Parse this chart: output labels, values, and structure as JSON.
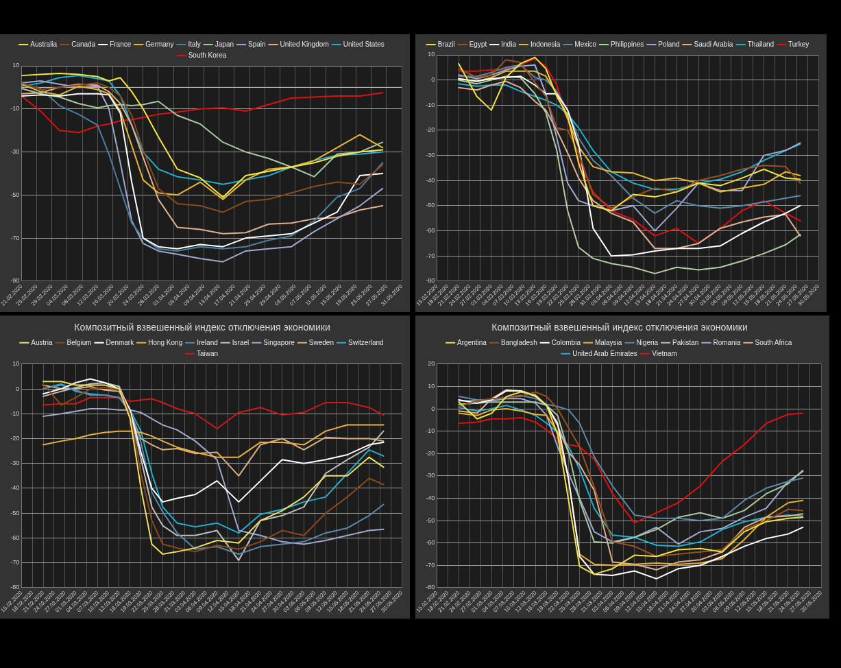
{
  "chart_data": [
    {
      "type": "line",
      "legend": "top",
      "grid": true,
      "marker": "none",
      "line_style": "solid",
      "x": [
        "2020-02-21",
        "2020-02-26",
        "2020-03-02",
        "2020-03-07",
        "2020-03-12",
        "2020-03-15",
        "2020-03-18",
        "2020-03-21",
        "2020-03-24",
        "2020-03-28",
        "2020-04-02",
        "2020-04-08",
        "2020-04-14",
        "2020-04-20",
        "2020-04-26",
        "2020-05-02",
        "2020-05-08",
        "2020-05-14",
        "2020-05-20",
        "2020-05-26"
      ],
      "xlim": [
        "2020-02-21",
        "2020-05-31"
      ],
      "xticks": [
        {
          "value": "2020-02-21",
          "label": "21.02.2020"
        },
        {
          "value": "2020-02-25",
          "label": "25.02.2020"
        },
        {
          "value": "2020-02-29",
          "label": "29.02.2020"
        },
        {
          "value": "2020-03-04",
          "label": "04.03.2020"
        },
        {
          "value": "2020-03-08",
          "label": "08.03.2020"
        },
        {
          "value": "2020-03-12",
          "label": "12.03.2020"
        },
        {
          "value": "2020-03-16",
          "label": "16.03.2020"
        },
        {
          "value": "2020-03-20",
          "label": "20.03.2020"
        },
        {
          "value": "2020-03-24",
          "label": "24.03.2020"
        },
        {
          "value": "2020-03-28",
          "label": "28.03.2020"
        },
        {
          "value": "2020-04-01",
          "label": "01.04.2020"
        },
        {
          "value": "2020-04-05",
          "label": "05.04.2020"
        },
        {
          "value": "2020-04-09",
          "label": "09.04.2020"
        },
        {
          "value": "2020-04-13",
          "label": "13.04.2020"
        },
        {
          "value": "2020-04-17",
          "label": "17.04.2020"
        },
        {
          "value": "2020-04-21",
          "label": "21.04.2020"
        },
        {
          "value": "2020-04-25",
          "label": "25.04.2020"
        },
        {
          "value": "2020-04-29",
          "label": "29.04.2020"
        },
        {
          "value": "2020-05-03",
          "label": "03.05.2020"
        },
        {
          "value": "2020-05-07",
          "label": "07.05.2020"
        },
        {
          "value": "2020-05-11",
          "label": "11.05.2020"
        },
        {
          "value": "2020-05-15",
          "label": "15.05.2020"
        },
        {
          "value": "2020-05-19",
          "label": "19.05.2020"
        },
        {
          "value": "2020-05-23",
          "label": "23.05.2020"
        },
        {
          "value": "2020-05-27",
          "label": "27.05.2020"
        },
        {
          "value": "2020-05-31",
          "label": "31.05.2020"
        }
      ],
      "ylim": [
        -90,
        10
      ],
      "yticks": [
        -90,
        -70,
        -50,
        -30,
        -10,
        10
      ],
      "ref_lines": [
        {
          "axis": "y",
          "value": 0,
          "color": "#d0d0d0"
        }
      ],
      "series": [
        {
          "name": "Australia",
          "color": "#f5e642",
          "values": [
            5.5,
            6,
            6.5,
            6,
            5,
            3,
            4.5,
            -2,
            -10,
            -23,
            -38,
            -42,
            -51,
            -41,
            -39,
            -37,
            -35,
            -32,
            -30,
            -29
          ]
        },
        {
          "name": "Canada",
          "color": "#8b4a1c",
          "values": [
            2,
            -1,
            0,
            1,
            2,
            0,
            -4,
            -13,
            -29,
            -47,
            -54,
            -55,
            -58,
            -53,
            -52,
            -49,
            -46,
            -44,
            -45,
            -36
          ]
        },
        {
          "name": "France",
          "color": "#ffffff",
          "values": [
            -4,
            -3.5,
            -4,
            -3,
            -3,
            -3.5,
            -12,
            -44,
            -70,
            -74,
            -75,
            -73,
            -74,
            -70,
            -69,
            -68,
            -63,
            -58,
            -41,
            -40
          ]
        },
        {
          "name": "Germany",
          "color": "#e8b830",
          "values": [
            1.5,
            -2,
            -3.5,
            0.5,
            -1,
            -3,
            -11,
            -27,
            -43,
            -49,
            -50,
            -44,
            -52,
            -43,
            -38,
            -37,
            -34,
            -28,
            -22,
            -28
          ]
        },
        {
          "name": "Italy",
          "color": "#4a7fa0",
          "values": [
            1.5,
            -0.5,
            -8.5,
            -12.5,
            -17.5,
            -31,
            -47,
            -63,
            -70,
            -75,
            -76,
            -74,
            -75,
            -74,
            -71,
            -69,
            -62,
            -51,
            -47,
            -35
          ]
        },
        {
          "name": "Japan",
          "color": "#a8c8a0",
          "values": [
            -0.5,
            -3,
            -4.5,
            -7.5,
            -9.5,
            -8.5,
            -8,
            -8.5,
            -8,
            -6.5,
            -13,
            -17,
            -25.5,
            -30,
            -33,
            -37,
            -41.5,
            -31,
            -30,
            -25.5
          ]
        },
        {
          "name": "Spain",
          "color": "#a0a8d0",
          "values": [
            2,
            3,
            1.5,
            0,
            0.5,
            -10,
            -35,
            -62,
            -72.5,
            -76,
            -77.5,
            -79.5,
            -81,
            -76,
            -75,
            -74,
            -67,
            -61,
            -55,
            -47
          ]
        },
        {
          "name": "United Kingdom",
          "color": "#e0b090",
          "values": [
            -3,
            -2.5,
            0,
            1.5,
            1,
            -2,
            -7.5,
            -17.5,
            -32.5,
            -52,
            -65,
            -66,
            -68,
            -67.5,
            -63.5,
            -63,
            -61,
            -60.5,
            -57,
            -55
          ]
        },
        {
          "name": "United States",
          "color": "#20b0d0",
          "values": [
            0.5,
            2,
            4.5,
            5.5,
            4,
            3,
            -4,
            -17.5,
            -30,
            -38,
            -41.5,
            -43,
            -45,
            -43,
            -41,
            -37,
            -34,
            -31.5,
            -31,
            -30
          ]
        },
        {
          "name": "South Korea",
          "color": "#e01010",
          "values": [
            -4,
            -11,
            -20,
            -21,
            -18,
            -17,
            -15.5,
            -15,
            -14,
            -12.5,
            -11.5,
            -10,
            -9.5,
            -11,
            -8,
            -5,
            -4.5,
            -4,
            -4,
            -2.5
          ]
        }
      ]
    },
    {
      "type": "line",
      "legend": "top",
      "grid": true,
      "marker": "none",
      "line_style": "solid",
      "x": [
        "2020-02-21",
        "2020-02-26",
        "2020-03-01",
        "2020-03-05",
        "2020-03-09",
        "2020-03-13",
        "2020-03-16",
        "2020-03-19",
        "2020-03-22",
        "2020-03-25",
        "2020-03-29",
        "2020-04-03",
        "2020-04-09",
        "2020-04-15",
        "2020-04-21",
        "2020-04-27",
        "2020-05-03",
        "2020-05-09",
        "2020-05-15",
        "2020-05-21",
        "2020-05-25"
      ],
      "xlim": [
        "2020-02-15",
        "2020-05-30"
      ],
      "xticks": [
        {
          "value": "2020-02-15",
          "label": "15.02.2020"
        },
        {
          "value": "2020-02-18",
          "label": "18.02.2020"
        },
        {
          "value": "2020-02-21",
          "label": "21.02.2020"
        },
        {
          "value": "2020-02-24",
          "label": "24.02.2020"
        },
        {
          "value": "2020-02-27",
          "label": "27.02.2020"
        },
        {
          "value": "2020-03-01",
          "label": "01.03.2020"
        },
        {
          "value": "2020-03-04",
          "label": "04.03.2020"
        },
        {
          "value": "2020-03-07",
          "label": "07.03.2020"
        },
        {
          "value": "2020-03-10",
          "label": "10.03.2020"
        },
        {
          "value": "2020-03-13",
          "label": "13.03.2020"
        },
        {
          "value": "2020-03-16",
          "label": "16.03.2020"
        },
        {
          "value": "2020-03-19",
          "label": "19.03.2020"
        },
        {
          "value": "2020-03-22",
          "label": "22.03.2020"
        },
        {
          "value": "2020-03-25",
          "label": "25.03.2020"
        },
        {
          "value": "2020-03-28",
          "label": "28.03.2020"
        },
        {
          "value": "2020-03-31",
          "label": "31.03.2020"
        },
        {
          "value": "2020-04-03",
          "label": "03.04.2020"
        },
        {
          "value": "2020-04-06",
          "label": "06.04.2020"
        },
        {
          "value": "2020-04-09",
          "label": "09.04.2020"
        },
        {
          "value": "2020-04-12",
          "label": "12.04.2020"
        },
        {
          "value": "2020-04-15",
          "label": "15.04.2020"
        },
        {
          "value": "2020-04-18",
          "label": "18.04.2020"
        },
        {
          "value": "2020-04-21",
          "label": "21.04.2020"
        },
        {
          "value": "2020-04-24",
          "label": "24.04.2020"
        },
        {
          "value": "2020-04-27",
          "label": "27.04.2020"
        },
        {
          "value": "2020-04-30",
          "label": "30.04.2020"
        },
        {
          "value": "2020-05-03",
          "label": "03.05.2020"
        },
        {
          "value": "2020-05-06",
          "label": "06.05.2020"
        },
        {
          "value": "2020-05-09",
          "label": "09.05.2020"
        },
        {
          "value": "2020-05-12",
          "label": "12.05.2020"
        },
        {
          "value": "2020-05-15",
          "label": "15.05.2020"
        },
        {
          "value": "2020-05-18",
          "label": "18.05.2020"
        },
        {
          "value": "2020-05-21",
          "label": "21.05.2020"
        },
        {
          "value": "2020-05-24",
          "label": "24.05.2020"
        },
        {
          "value": "2020-05-27",
          "label": "27.05.2020"
        },
        {
          "value": "2020-05-30",
          "label": "30.05.2020"
        }
      ],
      "ylim": [
        -80,
        10
      ],
      "yticks": [
        -80,
        -70,
        -60,
        -50,
        -40,
        -30,
        -20,
        -10,
        0,
        10
      ],
      "series": [
        {
          "name": "Brazil",
          "color": "#f0e040",
          "values": [
            6.5,
            -6.5,
            -12,
            1,
            6.5,
            9,
            4.5,
            -6.5,
            -14,
            -33,
            -50,
            -52,
            -45.5,
            -46.5,
            -44.5,
            -41,
            -42,
            -39,
            -35.5,
            -39,
            -39.5
          ]
        },
        {
          "name": "Egypt",
          "color": "#9a5020",
          "values": [
            4.5,
            1,
            2,
            8,
            7,
            -1,
            -6.5,
            -19,
            -20,
            -29,
            -45.5,
            -51,
            -46.5,
            -43,
            -44.5,
            -40,
            -38,
            -35.5,
            -34,
            -34.5,
            -41
          ]
        },
        {
          "name": "India",
          "color": "#ffffff",
          "values": [
            0.5,
            -0.5,
            0.5,
            1,
            1.5,
            -2,
            -5.5,
            -5.5,
            -12,
            -25.5,
            -59,
            -70,
            -69.5,
            -68,
            -67,
            -67,
            -66,
            -61,
            -56.5,
            -53,
            -50
          ]
        },
        {
          "name": "Indonesia",
          "color": "#e8b830",
          "values": [
            0.5,
            -0.5,
            1,
            3.5,
            3.5,
            3.5,
            1.5,
            -5.5,
            -15.5,
            -26.5,
            -34.5,
            -36.5,
            -37,
            -40,
            -39,
            -41,
            -44.5,
            -43,
            -41.5,
            -36.5,
            -38
          ]
        },
        {
          "name": "Mexico",
          "color": "#5a8aa8",
          "values": [
            1.5,
            1.5,
            3,
            5,
            6,
            1,
            0,
            -4.5,
            -12,
            -23,
            -32,
            -38,
            -47,
            -53,
            -48,
            -50,
            -51,
            -50,
            -48.5,
            -47,
            -46
          ]
        },
        {
          "name": "Philippines",
          "color": "#b0d0a0",
          "values": [
            0,
            -1.5,
            0,
            1.5,
            1,
            -5.5,
            -13,
            -28,
            -52,
            -66.5,
            -71,
            -73,
            -74.5,
            -77,
            -74.5,
            -75.5,
            -74.5,
            -72,
            -69,
            -65.5,
            -61.5
          ]
        },
        {
          "name": "Poland",
          "color": "#a0a8d8",
          "values": [
            2,
            0.5,
            2,
            4,
            5.5,
            6,
            -5.5,
            -23,
            -41,
            -48,
            -50,
            -52,
            -50,
            -60,
            -51,
            -41,
            -44,
            -44,
            -30,
            -28,
            -25
          ]
        },
        {
          "name": "Saudi Arabia",
          "color": "#e0b090",
          "values": [
            -3,
            -4,
            -2,
            -0.5,
            -3,
            -8.5,
            -12,
            -20,
            -29,
            -39,
            -48,
            -53,
            -56.5,
            -67,
            -67,
            -65,
            -59,
            -56.5,
            -54.5,
            -53.5,
            -62
          ]
        },
        {
          "name": "Thailand",
          "color": "#20b0d0",
          "values": [
            -1.5,
            -2.5,
            -2,
            -2,
            -4.5,
            -6.5,
            -8,
            -10,
            -13.5,
            -19,
            -28,
            -36.5,
            -41,
            -43.5,
            -43.5,
            -41,
            -39.5,
            -36.5,
            -32,
            -28,
            -25.5
          ]
        },
        {
          "name": "Turkey",
          "color": "#e01010",
          "values": [
            3.5,
            3.5,
            4,
            4.5,
            6,
            8.5,
            5.5,
            -2,
            -15.5,
            -32,
            -44.5,
            -52,
            -55.5,
            -62,
            -59,
            -65,
            -59,
            -52,
            -48,
            -53,
            -56
          ]
        }
      ]
    },
    {
      "type": "line",
      "title": "Композитный взвешенный индекс отключения экономики",
      "legend": "top",
      "grid": true,
      "marker": "none",
      "line_style": "solid",
      "x": [
        "2020-02-21",
        "2020-02-26",
        "2020-03-01",
        "2020-03-05",
        "2020-03-09",
        "2020-03-13",
        "2020-03-16",
        "2020-03-19",
        "2020-03-22",
        "2020-03-25",
        "2020-03-29",
        "2020-04-03",
        "2020-04-09",
        "2020-04-15",
        "2020-04-21",
        "2020-04-27",
        "2020-05-03",
        "2020-05-09",
        "2020-05-15",
        "2020-05-21",
        "2020-05-25"
      ],
      "xlim": [
        "2020-02-15",
        "2020-05-30"
      ],
      "xticks": [
        {
          "value": "2020-02-15",
          "label": "15.02.2020"
        },
        {
          "value": "2020-02-18",
          "label": "18.02.2020"
        },
        {
          "value": "2020-02-21",
          "label": "21.02.2020"
        },
        {
          "value": "2020-02-24",
          "label": "24.02.2020"
        },
        {
          "value": "2020-02-27",
          "label": "27.02.2020"
        },
        {
          "value": "2020-03-01",
          "label": "01.03.2020"
        },
        {
          "value": "2020-03-04",
          "label": "04.03.2020"
        },
        {
          "value": "2020-03-07",
          "label": "07.03.2020"
        },
        {
          "value": "2020-03-10",
          "label": "10.03.2020"
        },
        {
          "value": "2020-03-13",
          "label": "13.03.2020"
        },
        {
          "value": "2020-03-16",
          "label": "16.03.2020"
        },
        {
          "value": "2020-03-19",
          "label": "19.03.2020"
        },
        {
          "value": "2020-03-22",
          "label": "22.03.2020"
        },
        {
          "value": "2020-03-25",
          "label": "25.03.2020"
        },
        {
          "value": "2020-03-28",
          "label": "28.03.2020"
        },
        {
          "value": "2020-03-31",
          "label": "31.03.2020"
        },
        {
          "value": "2020-04-03",
          "label": "03.04.2020"
        },
        {
          "value": "2020-04-06",
          "label": "06.04.2020"
        },
        {
          "value": "2020-04-09",
          "label": "09.04.2020"
        },
        {
          "value": "2020-04-12",
          "label": "12.04.2020"
        },
        {
          "value": "2020-04-15",
          "label": "15.04.2020"
        },
        {
          "value": "2020-04-18",
          "label": "18.04.2020"
        },
        {
          "value": "2020-04-21",
          "label": "21.04.2020"
        },
        {
          "value": "2020-04-24",
          "label": "24.04.2020"
        },
        {
          "value": "2020-04-27",
          "label": "27.04.2020"
        },
        {
          "value": "2020-04-30",
          "label": "30.04.2020"
        },
        {
          "value": "2020-05-03",
          "label": "03.05.2020"
        },
        {
          "value": "2020-05-06",
          "label": "06.05.2020"
        },
        {
          "value": "2020-05-09",
          "label": "09.05.2020"
        },
        {
          "value": "2020-05-12",
          "label": "12.05.2020"
        },
        {
          "value": "2020-05-15",
          "label": "15.05.2020"
        },
        {
          "value": "2020-05-18",
          "label": "18.05.2020"
        },
        {
          "value": "2020-05-21",
          "label": "21.05.2020"
        },
        {
          "value": "2020-05-24",
          "label": "24.05.2020"
        },
        {
          "value": "2020-05-27",
          "label": "27.05.2020"
        },
        {
          "value": "2020-05-30",
          "label": "30.05.2020"
        }
      ],
      "ylim": [
        -80,
        10
      ],
      "yticks": [
        -80,
        -70,
        -60,
        -50,
        -40,
        -30,
        -20,
        -10,
        0,
        10
      ],
      "series": [
        {
          "name": "Austria",
          "color": "#f0e060",
          "values": [
            3,
            3,
            1.5,
            1.5,
            1.5,
            0,
            -12,
            -40,
            -62.5,
            -66.5,
            -65.5,
            -64,
            -61,
            -62,
            -53,
            -49,
            -43.5,
            -35,
            -35,
            -27.5,
            -31.5
          ]
        },
        {
          "name": "Belgium",
          "color": "#8b4a1c",
          "values": [
            2,
            -6.5,
            -3.5,
            0,
            0.5,
            0,
            -10,
            -34,
            -53,
            -62.5,
            -64,
            -65.5,
            -63,
            -64.5,
            -61.5,
            -57,
            -59,
            -50,
            -43.5,
            -36,
            -38.5
          ]
        },
        {
          "name": "Denmark",
          "color": "#ffffff",
          "values": [
            -2,
            0,
            2.5,
            4,
            2.5,
            0,
            -8.5,
            -25.5,
            -40,
            -45.5,
            -44,
            -42.5,
            -37,
            -45.5,
            -37,
            -28.5,
            -30,
            -28.5,
            -26.5,
            -22.5,
            -21.5
          ]
        },
        {
          "name": "Hong Kong",
          "color": "#e8b040",
          "values": [
            -22.5,
            -21,
            -20,
            -18.5,
            -17.5,
            -17,
            -17,
            -17.5,
            -19,
            -21,
            -23.5,
            -25.5,
            -27.5,
            -27.5,
            -21.5,
            -21.5,
            -22.5,
            -17,
            -14.5,
            -14.5,
            -14.5
          ]
        },
        {
          "name": "Ireland",
          "color": "#5a8aa8",
          "values": [
            0,
            1.5,
            -0.5,
            -2.5,
            -2.5,
            -3.5,
            -9.5,
            -21.5,
            -41.5,
            -49.5,
            -58,
            -64.5,
            -63.5,
            -66.5,
            -63.5,
            -62.5,
            -61.5,
            -58,
            -56,
            -51,
            -46.5
          ]
        },
        {
          "name": "Israel",
          "color": "#c0c0c0",
          "values": [
            -3,
            -1,
            0.5,
            2,
            2.5,
            1,
            -9.5,
            -28,
            -47.5,
            -55,
            -59,
            -59,
            -57,
            -69,
            -53,
            -51,
            -47.5,
            -34,
            -28.5,
            -23.5,
            -17
          ]
        },
        {
          "name": "Singapore",
          "color": "#a0a8d0",
          "values": [
            -11,
            -10,
            -9,
            -8,
            -8,
            -8.5,
            -8.5,
            -9.5,
            -12,
            -14.5,
            -16.5,
            -21,
            -28.5,
            -57,
            -59,
            -61.5,
            -62.5,
            -61,
            -59,
            -57,
            -56.5
          ]
        },
        {
          "name": "Sweden",
          "color": "#d8b080",
          "values": [
            1.5,
            0,
            0,
            1,
            -0.5,
            -1,
            -9.5,
            -20,
            -22.5,
            -24.5,
            -24,
            -26,
            -25.5,
            -35,
            -22.5,
            -20,
            -24.5,
            -19.5,
            -20,
            -20,
            -21
          ]
        },
        {
          "name": "Switzerland",
          "color": "#20b0d0",
          "values": [
            0,
            2,
            -1,
            -2,
            -2.5,
            -3.5,
            -8.5,
            -17,
            -34,
            -47.5,
            -54,
            -55.5,
            -54,
            -58,
            -50.5,
            -48.5,
            -45.5,
            -43.5,
            -34,
            -24.5,
            -27
          ]
        },
        {
          "name": "Taiwan",
          "color": "#d01818",
          "values": [
            -6.5,
            -6,
            -6,
            -3.5,
            -3.5,
            -3.5,
            -5,
            -4.5,
            -4,
            -5.5,
            -8,
            -10,
            -16,
            -9.5,
            -7.5,
            -10.5,
            -9.5,
            -5.5,
            -5.5,
            -7.5,
            -10.5
          ]
        }
      ]
    },
    {
      "type": "line",
      "title": "Композитный взвешенный индекс отключения экономики",
      "legend": "top",
      "grid": true,
      "marker": "none",
      "line_style": "solid",
      "x": [
        "2020-02-21",
        "2020-02-26",
        "2020-03-01",
        "2020-03-05",
        "2020-03-09",
        "2020-03-13",
        "2020-03-16",
        "2020-03-19",
        "2020-03-22",
        "2020-03-25",
        "2020-03-29",
        "2020-04-03",
        "2020-04-09",
        "2020-04-15",
        "2020-04-21",
        "2020-04-27",
        "2020-05-03",
        "2020-05-09",
        "2020-05-15",
        "2020-05-21",
        "2020-05-25"
      ],
      "xlim": [
        "2020-02-15",
        "2020-05-30"
      ],
      "xticks": [
        {
          "value": "2020-02-15",
          "label": "15.02.2020"
        },
        {
          "value": "2020-02-18",
          "label": "18.02.2020"
        },
        {
          "value": "2020-02-21",
          "label": "21.02.2020"
        },
        {
          "value": "2020-02-24",
          "label": "24.02.2020"
        },
        {
          "value": "2020-02-27",
          "label": "27.02.2020"
        },
        {
          "value": "2020-03-01",
          "label": "01.03.2020"
        },
        {
          "value": "2020-03-04",
          "label": "04.03.2020"
        },
        {
          "value": "2020-03-07",
          "label": "07.03.2020"
        },
        {
          "value": "2020-03-10",
          "label": "10.03.2020"
        },
        {
          "value": "2020-03-13",
          "label": "13.03.2020"
        },
        {
          "value": "2020-03-16",
          "label": "16.03.2020"
        },
        {
          "value": "2020-03-19",
          "label": "19.03.2020"
        },
        {
          "value": "2020-03-22",
          "label": "22.03.2020"
        },
        {
          "value": "2020-03-25",
          "label": "25.03.2020"
        },
        {
          "value": "2020-03-28",
          "label": "28.03.2020"
        },
        {
          "value": "2020-03-31",
          "label": "31.03.2020"
        },
        {
          "value": "2020-04-03",
          "label": "03.04.2020"
        },
        {
          "value": "2020-04-06",
          "label": "06.04.2020"
        },
        {
          "value": "2020-04-09",
          "label": "09.04.2020"
        },
        {
          "value": "2020-04-12",
          "label": "12.04.2020"
        },
        {
          "value": "2020-04-15",
          "label": "15.04.2020"
        },
        {
          "value": "2020-04-18",
          "label": "18.04.2020"
        },
        {
          "value": "2020-04-21",
          "label": "21.04.2020"
        },
        {
          "value": "2020-04-24",
          "label": "24.04.2020"
        },
        {
          "value": "2020-04-27",
          "label": "27.04.2020"
        },
        {
          "value": "2020-04-30",
          "label": "30.04.2020"
        },
        {
          "value": "2020-05-03",
          "label": "03.05.2020"
        },
        {
          "value": "2020-05-06",
          "label": "06.05.2020"
        },
        {
          "value": "2020-05-09",
          "label": "09.05.2020"
        },
        {
          "value": "2020-05-12",
          "label": "12.05.2020"
        },
        {
          "value": "2020-05-15",
          "label": "15.05.2020"
        },
        {
          "value": "2020-05-18",
          "label": "18.05.2020"
        },
        {
          "value": "2020-05-21",
          "label": "21.05.2020"
        },
        {
          "value": "2020-05-24",
          "label": "24.05.2020"
        },
        {
          "value": "2020-05-27",
          "label": "27.05.2020"
        },
        {
          "value": "2020-05-30",
          "label": "30.05.2020"
        }
      ],
      "ylim": [
        -80,
        20
      ],
      "yticks": [
        -80,
        -70,
        -60,
        -50,
        -40,
        -30,
        -20,
        -10,
        0,
        10,
        20
      ],
      "series": [
        {
          "name": "Argentina",
          "color": "#f0e040",
          "values": [
            3,
            -4.5,
            -2,
            5.5,
            7.5,
            6,
            1.5,
            -11.5,
            -41,
            -70.5,
            -74,
            -71.5,
            -65.5,
            -66,
            -63,
            -62.5,
            -64,
            -55,
            -50.5,
            -49,
            -48.5
          ]
        },
        {
          "name": "Bangladesh",
          "color": "#9a5020",
          "values": [
            1,
            3.5,
            4.5,
            5,
            5.5,
            7.5,
            5.5,
            0,
            -8.5,
            -17,
            -35,
            -59.5,
            -61.5,
            -66,
            -65,
            -64,
            -63,
            -54,
            -50,
            -45,
            -45.5
          ]
        },
        {
          "name": "Colombia",
          "color": "#ffffff",
          "values": [
            4,
            2.5,
            4,
            8,
            8,
            5.5,
            1.5,
            -6.5,
            -31.5,
            -66,
            -74,
            -74.5,
            -72.5,
            -76,
            -71.5,
            -70,
            -66,
            -61.5,
            -58,
            -56,
            -53
          ]
        },
        {
          "name": "Malaysia",
          "color": "#e8b030",
          "values": [
            -2,
            -3,
            -0.5,
            0,
            -1,
            -2.5,
            -3,
            -10.5,
            -31.5,
            -65,
            -69.5,
            -70,
            -69.5,
            -69,
            -69.5,
            -69,
            -67,
            -58.5,
            -48.5,
            -42,
            -41
          ]
        },
        {
          "name": "Nigeria",
          "color": "#5a8aa8",
          "values": [
            5.5,
            4,
            4,
            5,
            6,
            4.5,
            2,
            1,
            -0.5,
            -6.5,
            -21.5,
            -34.5,
            -47.5,
            -49,
            -49,
            -50,
            -49,
            -41,
            -35.5,
            -32.5,
            -31
          ]
        },
        {
          "name": "Pakistan",
          "color": "#a8c8a0",
          "values": [
            2,
            2.5,
            3,
            3,
            3,
            3,
            1.5,
            -3,
            -19.5,
            -41,
            -59.5,
            -60,
            -57.5,
            -54,
            -48.5,
            -46.5,
            -49,
            -45.5,
            -38,
            -33.5,
            -27.5
          ]
        },
        {
          "name": "Romania",
          "color": "#a0a8d0",
          "values": [
            3.5,
            3.5,
            3.5,
            4.5,
            4.5,
            2.5,
            -3,
            -17,
            -29,
            -40,
            -55,
            -59.5,
            -57.5,
            -53,
            -60.5,
            -55,
            -53.5,
            -48.5,
            -44.5,
            -32.5,
            -28
          ]
        },
        {
          "name": "South Africa",
          "color": "#e0b090",
          "values": [
            -1,
            -2,
            4.5,
            8.5,
            8,
            6,
            1.5,
            -7.5,
            -19.5,
            -25,
            -36.5,
            -68.5,
            -69.5,
            -72,
            -68.5,
            -67.5,
            -64,
            -53,
            -48.5,
            -48,
            -47
          ]
        },
        {
          "name": "United Arab Emirates",
          "color": "#20b0d0",
          "values": [
            0.5,
            -1,
            0,
            1.5,
            -0.5,
            -3,
            -6.5,
            -10.5,
            -17,
            -27,
            -44.5,
            -56.5,
            -57.5,
            -61,
            -61.5,
            -59.5,
            -54,
            -50.5,
            -48.5,
            -47.5,
            -48
          ]
        },
        {
          "name": "Vietnam",
          "color": "#e01010",
          "values": [
            -6.5,
            -6,
            -4.5,
            -4.5,
            -4,
            -6,
            -9.5,
            -13.5,
            -16,
            -17,
            -22.5,
            -38,
            -51,
            -46.5,
            -42,
            -34.5,
            -23.5,
            -16,
            -6.5,
            -2.5,
            -2
          ]
        }
      ]
    }
  ]
}
